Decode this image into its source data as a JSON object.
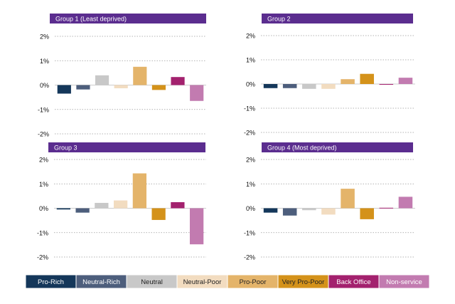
{
  "chart_data": {
    "type": "bar",
    "legend_position": "bottom",
    "categories": [
      "Pro-Rich",
      "Neutral-Rich",
      "Neutral",
      "Neutral-Poor",
      "Pro-Poor",
      "Very Pro-Poor",
      "Back Office",
      "Non-service"
    ],
    "colors": [
      "#14375a",
      "#4d5e7c",
      "#c8c8c8",
      "#f2dcc0",
      "#e4b46a",
      "#d4921a",
      "#a3216e",
      "#c27bb0"
    ],
    "legend_text_colors": [
      "#ffffff",
      "#ffffff",
      "#222222",
      "#222222",
      "#222222",
      "#222222",
      "#ffffff",
      "#ffffff"
    ],
    "y_ticks": [
      2,
      1,
      0,
      -1,
      -2
    ],
    "y_tick_labels": [
      "2%",
      "1%",
      "0%",
      "-1%",
      "-2%"
    ],
    "ylim": [
      -2,
      2
    ],
    "grid": true,
    "title_bar_color": "#5b2d8f",
    "panels": [
      {
        "title": "Group 1 (Least deprived)",
        "values": [
          -0.35,
          -0.18,
          0.4,
          -0.13,
          0.75,
          -0.2,
          0.33,
          -0.65
        ]
      },
      {
        "title": "Group 2",
        "values": [
          -0.17,
          -0.17,
          -0.2,
          -0.2,
          0.2,
          0.42,
          -0.02,
          0.26
        ]
      },
      {
        "title": "Group 3",
        "values": [
          -0.05,
          -0.18,
          0.22,
          0.32,
          1.43,
          -0.48,
          0.25,
          -1.48
        ]
      },
      {
        "title": "Group 4 (Most deprived)",
        "values": [
          -0.18,
          -0.3,
          -0.08,
          -0.26,
          0.8,
          -0.45,
          0.02,
          0.47
        ]
      }
    ]
  }
}
